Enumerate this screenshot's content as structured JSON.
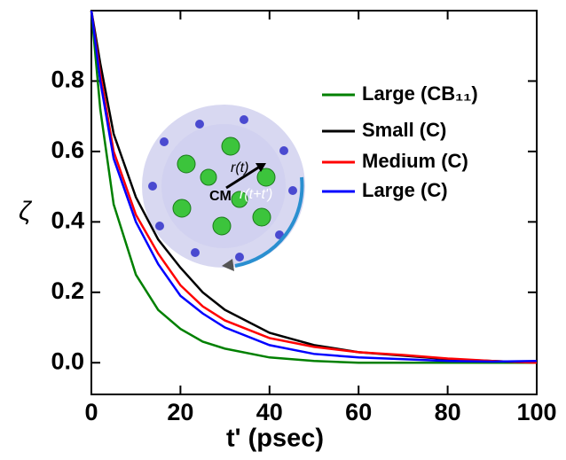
{
  "chart_data": {
    "type": "line",
    "x_label": "t' (psec)",
    "y_label": "ζ",
    "x": [
      0,
      2,
      5,
      10,
      15,
      20,
      25,
      30,
      40,
      50,
      60,
      70,
      80,
      90,
      100
    ],
    "series": [
      {
        "name": "Large (CB₁₁)",
        "color": "#008000",
        "values": [
          1.0,
          0.72,
          0.45,
          0.25,
          0.15,
          0.096,
          0.06,
          0.04,
          0.015,
          0.005,
          0.0,
          0.0,
          0.0,
          0.0,
          0.0
        ]
      },
      {
        "name": "Small (C)",
        "color": "#000000",
        "values": [
          1.0,
          0.85,
          0.65,
          0.47,
          0.35,
          0.27,
          0.2,
          0.15,
          0.085,
          0.05,
          0.03,
          0.02,
          0.01,
          0.005,
          0.0
        ]
      },
      {
        "name": "Medium (C)",
        "color": "#ff0000",
        "values": [
          1.0,
          0.82,
          0.6,
          0.42,
          0.31,
          0.22,
          0.16,
          0.12,
          0.07,
          0.045,
          0.03,
          0.022,
          0.012,
          0.005,
          0.0
        ]
      },
      {
        "name": "Large (C)",
        "color": "#0000ff",
        "values": [
          1.0,
          0.8,
          0.58,
          0.4,
          0.28,
          0.19,
          0.14,
          0.1,
          0.05,
          0.025,
          0.015,
          0.01,
          0.005,
          0.003,
          0.005
        ]
      }
    ],
    "xlim": [
      0,
      100
    ],
    "xticks": [
      0,
      20,
      40,
      60,
      80,
      100
    ],
    "ylim": [
      -0.09,
      1.0
    ],
    "yticks": [
      {
        "value": 0,
        "label": "0.0"
      },
      0.2,
      0.4,
      0.6,
      0.8
    ],
    "legend": "upper-right",
    "annotations": [
      "CM",
      "r(t)",
      "r(t+t')"
    ]
  }
}
